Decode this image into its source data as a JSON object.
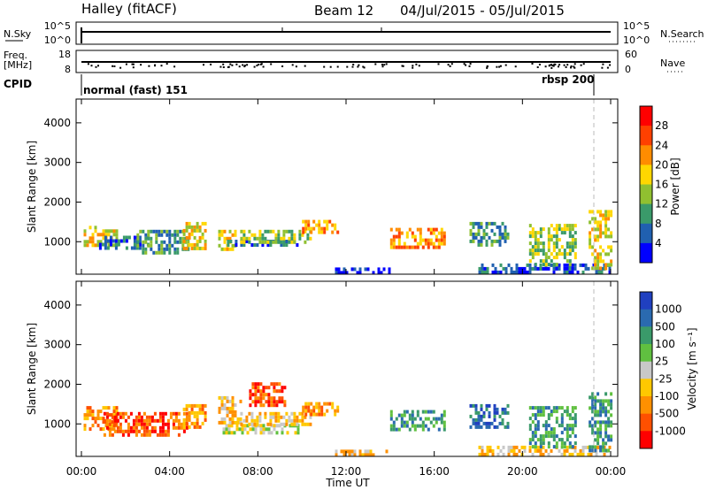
{
  "header": {
    "site": "Halley (fitACF)",
    "beam": "Beam 12",
    "dates": "04/Jul/2015 - 05/Jul/2015"
  },
  "top_panels": {
    "nsky_label": "N.Sky",
    "nsky_ticks": [
      "10^5",
      "10^0"
    ],
    "nsearch_label": "N.Search",
    "nsearch_ticks": [
      "10^5",
      "10^0"
    ],
    "freq_label_1": "Freq.",
    "freq_label_2": "[MHz]",
    "freq_ticks": [
      "18",
      "8"
    ],
    "nave_label": "Nave",
    "nave_ticks": [
      "60",
      "0"
    ],
    "cpid_label": "CPID",
    "cpid_modes": [
      "normal (fast) 151",
      "rbsp 200"
    ]
  },
  "chart_data": [
    {
      "type": "heatmap",
      "name": "power",
      "ylabel": "Slant Range [km]",
      "yticks": [
        "4000",
        "3000",
        "2000",
        "1000"
      ],
      "ylim": [
        180,
        4600
      ],
      "xlim_hours": [
        0,
        24
      ],
      "colorbar_label": "Power [dB]",
      "colorbar_ticks": [
        "28",
        "24",
        "20",
        "16",
        "12",
        "8",
        "4"
      ],
      "colorbar_colors": [
        "#ff0000",
        "#ff4000",
        "#ff8c00",
        "#ffd700",
        "#90c030",
        "#3a9a6a",
        "#2060b0",
        "#0000ff"
      ],
      "patches": [
        {
          "t0": 0.1,
          "t1": 1.6,
          "r0": 900,
          "r1": 1400,
          "level": 3
        },
        {
          "t0": 0.8,
          "t1": 3.0,
          "r0": 800,
          "r1": 1150,
          "level": 6
        },
        {
          "t0": 2.5,
          "t1": 4.8,
          "r0": 700,
          "r1": 1300,
          "level": 5
        },
        {
          "t0": 4.6,
          "t1": 5.6,
          "r0": 850,
          "r1": 1500,
          "level": 3
        },
        {
          "t0": 6.2,
          "t1": 7.0,
          "r0": 850,
          "r1": 1300,
          "level": 3
        },
        {
          "t0": 6.6,
          "t1": 9.8,
          "r0": 900,
          "r1": 1050,
          "level": 6
        },
        {
          "t0": 7.2,
          "t1": 10.4,
          "r0": 1000,
          "r1": 1300,
          "level": 4
        },
        {
          "t0": 10.0,
          "t1": 11.6,
          "r0": 1250,
          "r1": 1550,
          "level": 2
        },
        {
          "t0": 11.5,
          "t1": 14.0,
          "r0": 250,
          "r1": 350,
          "level": 7
        },
        {
          "t0": 14.0,
          "t1": 16.5,
          "r0": 900,
          "r1": 1350,
          "level": 2
        },
        {
          "t0": 17.6,
          "t1": 19.4,
          "r0": 900,
          "r1": 1500,
          "level": 5
        },
        {
          "t0": 18.0,
          "t1": 24.0,
          "r0": 250,
          "r1": 450,
          "level": 6
        },
        {
          "t0": 20.3,
          "t1": 22.4,
          "r0": 400,
          "r1": 1450,
          "level": 4
        },
        {
          "t0": 23.0,
          "t1": 24.0,
          "r0": 300,
          "r1": 1800,
          "level": 3
        }
      ]
    },
    {
      "type": "heatmap",
      "name": "velocity",
      "ylabel": "Slant Range [km]",
      "yticks": [
        "4000",
        "3000",
        "2000",
        "1000"
      ],
      "ylim": [
        180,
        4600
      ],
      "xlim_hours": [
        0,
        24
      ],
      "colorbar_label": "Velocity [m s⁻¹]",
      "colorbar_ticks": [
        "1000",
        "500",
        "100",
        "25",
        "-25",
        "-100",
        "-500",
        "-1000"
      ],
      "colorbar_colors": [
        "#2040c0",
        "#2a6ab0",
        "#3a9a6a",
        "#60c040",
        "#c8c8c8",
        "#ffc800",
        "#ff9000",
        "#ff5000",
        "#ff0000"
      ],
      "patches": [
        {
          "t0": 0.1,
          "t1": 1.6,
          "r0": 900,
          "r1": 1450,
          "level": 6
        },
        {
          "t0": 1.0,
          "t1": 4.8,
          "r0": 750,
          "r1": 1300,
          "level": 7
        },
        {
          "t0": 4.6,
          "t1": 5.6,
          "r0": 900,
          "r1": 1500,
          "level": 6
        },
        {
          "t0": 6.4,
          "t1": 9.8,
          "r0": 800,
          "r1": 1000,
          "level": 4
        },
        {
          "t0": 6.2,
          "t1": 7.2,
          "r0": 1000,
          "r1": 1700,
          "level": 5
        },
        {
          "t0": 7.6,
          "t1": 9.2,
          "r0": 1500,
          "r1": 2050,
          "level": 7
        },
        {
          "t0": 7.2,
          "t1": 10.4,
          "r0": 1000,
          "r1": 1300,
          "level": 5
        },
        {
          "t0": 10.0,
          "t1": 11.6,
          "r0": 1250,
          "r1": 1550,
          "level": 6
        },
        {
          "t0": 11.5,
          "t1": 14.0,
          "r0": 250,
          "r1": 350,
          "level": 5
        },
        {
          "t0": 14.0,
          "t1": 16.5,
          "r0": 900,
          "r1": 1350,
          "level": 2
        },
        {
          "t0": 17.6,
          "t1": 19.4,
          "r0": 900,
          "r1": 1500,
          "level": 1
        },
        {
          "t0": 18.0,
          "t1": 24.0,
          "r0": 250,
          "r1": 450,
          "level": 5
        },
        {
          "t0": 20.3,
          "t1": 22.4,
          "r0": 400,
          "r1": 1450,
          "level": 2
        },
        {
          "t0": 23.0,
          "t1": 24.0,
          "r0": 300,
          "r1": 1800,
          "level": 2
        }
      ]
    }
  ],
  "xaxis": {
    "label": "Time UT",
    "ticks": [
      "00:00",
      "04:00",
      "08:00",
      "12:00",
      "16:00",
      "20:00",
      "00:00"
    ]
  }
}
